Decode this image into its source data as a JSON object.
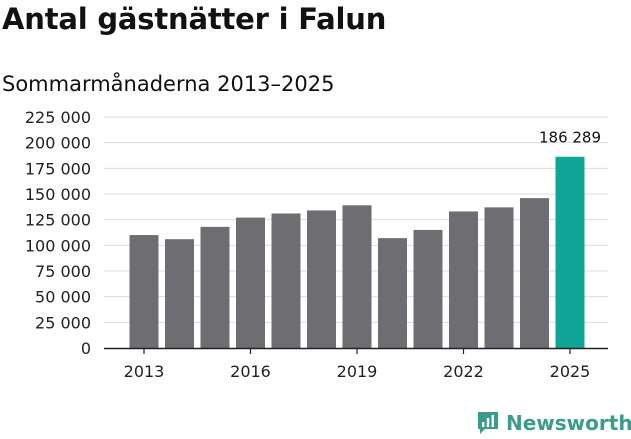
{
  "title": "Antal gästnätter i Falun",
  "subtitle": "Sommarmånaderna 2013–2025",
  "brand": {
    "name": "Newsworthy",
    "icon": "newsworthy-logo-icon",
    "color": "#3a9c8c"
  },
  "colors": {
    "bar": "#6e6d72",
    "highlight": "#0fa596",
    "grid": "#dcdcdc",
    "axis": "#222222"
  },
  "chart_data": {
    "type": "bar",
    "title": "Antal gästnätter i Falun",
    "subtitle": "Sommarmånaderna 2013–2025",
    "xlabel": "",
    "ylabel": "",
    "categories": [
      "2013",
      "2014",
      "2015",
      "2016",
      "2017",
      "2018",
      "2019",
      "2020",
      "2021",
      "2022",
      "2023",
      "2024",
      "2025"
    ],
    "values": [
      110000,
      106000,
      118000,
      127000,
      131000,
      134000,
      139000,
      107000,
      115000,
      133000,
      137000,
      146000,
      186289
    ],
    "ylim": [
      0,
      225000
    ],
    "yticks": [
      0,
      25000,
      50000,
      75000,
      100000,
      125000,
      150000,
      175000,
      200000,
      225000
    ],
    "ytick_labels": [
      "0",
      "25 000",
      "50 000",
      "75 000",
      "100 000",
      "125 000",
      "150 000",
      "175 000",
      "200 000",
      "225 000"
    ],
    "xtick_labels": [
      "2013",
      "2016",
      "2019",
      "2022",
      "2025"
    ],
    "highlight_category": "2025",
    "data_labels": [
      {
        "category": "2025",
        "text": "186 289"
      }
    ],
    "grid": true,
    "legend": "none"
  }
}
